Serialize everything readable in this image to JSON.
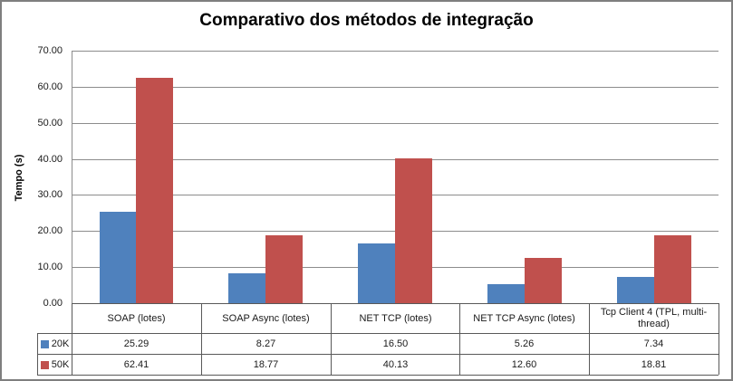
{
  "chart_data": {
    "type": "bar",
    "title": "Comparativo dos métodos de integração",
    "xlabel": "",
    "ylabel": "Tempo (s)",
    "categories": [
      "SOAP (lotes)",
      "SOAP Async (lotes)",
      "NET TCP (lotes)",
      "NET TCP  Async (lotes)",
      "Tcp Client 4 (TPL, multi-thread)"
    ],
    "series": [
      {
        "name": "20K",
        "color": "#4F81BD",
        "values": [
          25.29,
          8.27,
          16.5,
          5.26,
          7.34
        ]
      },
      {
        "name": "50K",
        "color": "#C0504D",
        "values": [
          62.41,
          18.77,
          40.13,
          12.6,
          18.81
        ]
      }
    ],
    "ylim": [
      0,
      70
    ],
    "ytick_step": 10,
    "yticks": [
      "0.00",
      "10.00",
      "20.00",
      "30.00",
      "40.00",
      "50.00",
      "60.00",
      "70.00"
    ],
    "grid": true,
    "legend_position": "table-left-of-rows",
    "value_format": "2dp",
    "colors": {
      "series_20k": "#4F81BD",
      "series_50k": "#C0504D",
      "gridline": "#8c8c8c",
      "table_border": "#595959",
      "chart_border": "#7f7f7f",
      "text": "#1a1a1a"
    }
  }
}
